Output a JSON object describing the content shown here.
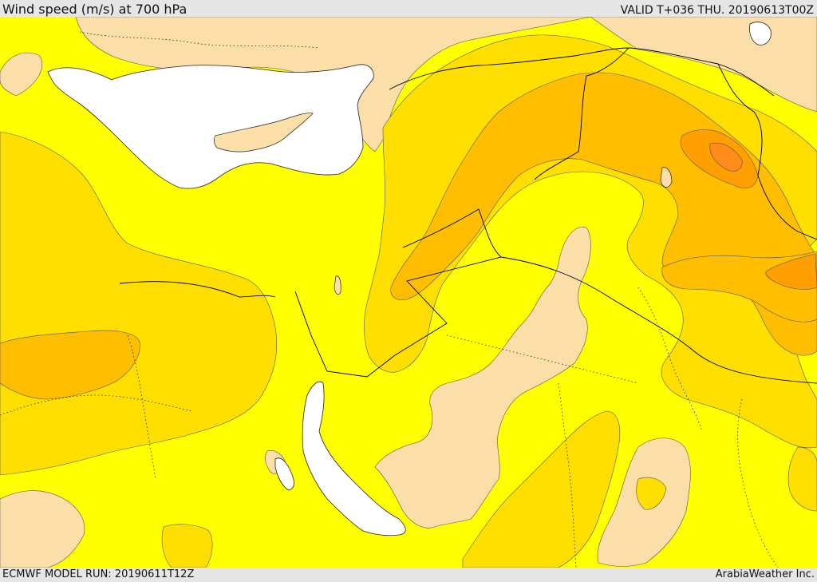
{
  "header": {
    "title": "Wind speed (m/s) at 700 hPa",
    "valid": "VALID T+036 THU. 20190613T00Z"
  },
  "footer": {
    "model_run": "ECMWF MODEL RUN: 20190611T12Z",
    "credit": "ArabiaWeather Inc."
  },
  "map": {
    "parameter": "wind speed",
    "level": "700 hPa",
    "units": "m/s",
    "colors": {
      "band_lowest": "#fcdfa8",
      "band_low": "#ffff00",
      "band_mid": "#ffdf00",
      "band_high": "#ffbf00",
      "band_higher": "#ff9f00",
      "band_highest": "#ff8c1a",
      "sea": "#ffffff",
      "contour": "#555555",
      "border": "#000000"
    }
  }
}
